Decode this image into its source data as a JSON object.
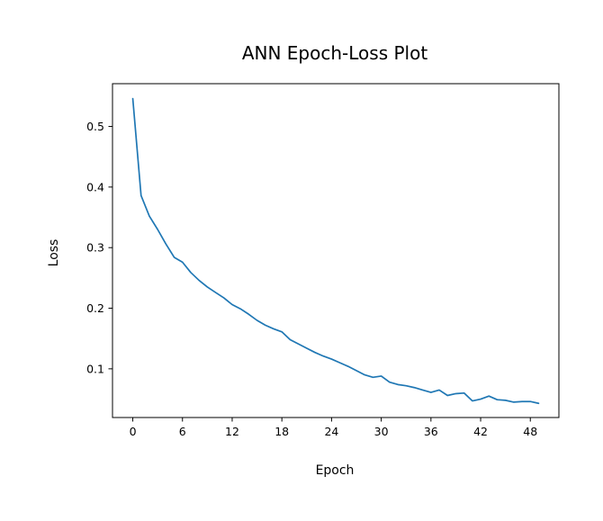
{
  "chart_data": {
    "type": "line",
    "title": "ANN Epoch-Loss Plot",
    "xlabel": "Epoch",
    "ylabel": "Loss",
    "xlim": [
      -2.45,
      51.45
    ],
    "ylim": [
      0.0196,
      0.5706
    ],
    "xticks": [
      0,
      6,
      12,
      18,
      24,
      30,
      36,
      42,
      48
    ],
    "yticks": [
      0.1,
      0.2,
      0.3,
      0.4,
      0.5
    ],
    "grid": false,
    "color": "#1f77b4",
    "series": [
      {
        "x": [
          0,
          1,
          2,
          3,
          4,
          5,
          6,
          7,
          8,
          9,
          10,
          11,
          12,
          13,
          14,
          15,
          16,
          17,
          18,
          19,
          20,
          21,
          22,
          23,
          24,
          25,
          26,
          27,
          28,
          29,
          30,
          31,
          32,
          33,
          34,
          35,
          36,
          37,
          38,
          39,
          40,
          41,
          42,
          43,
          44,
          45,
          46,
          47,
          48,
          49
        ],
        "values": [
          0.546,
          0.386,
          0.352,
          0.33,
          0.306,
          0.284,
          0.276,
          0.259,
          0.246,
          0.235,
          0.226,
          0.217,
          0.206,
          0.199,
          0.19,
          0.18,
          0.172,
          0.166,
          0.161,
          0.148,
          0.141,
          0.134,
          0.127,
          0.121,
          0.116,
          0.11,
          0.104,
          0.097,
          0.09,
          0.086,
          0.088,
          0.078,
          0.074,
          0.072,
          0.069,
          0.065,
          0.061,
          0.065,
          0.056,
          0.059,
          0.06,
          0.047,
          0.05,
          0.055,
          0.049,
          0.048,
          0.045,
          0.046,
          0.046,
          0.043
        ]
      }
    ]
  }
}
